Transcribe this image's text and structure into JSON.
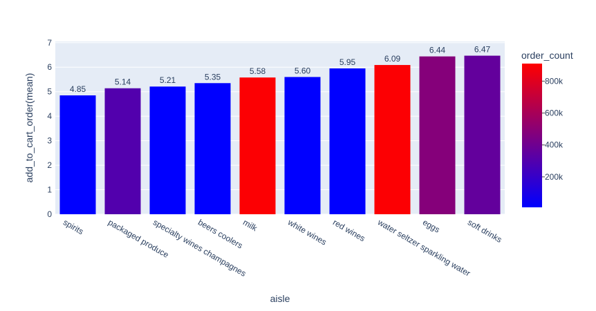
{
  "chart_data": {
    "type": "bar",
    "xlabel": "aisle",
    "ylabel": "add_to_cart_order(mean)",
    "ylim": [
      0,
      7.05
    ],
    "y_ticks": [
      "0",
      "1",
      "2",
      "3",
      "4",
      "5",
      "6",
      "7"
    ],
    "grid": true,
    "categories": [
      "spirits",
      "packaged produce",
      "specialty wines champagnes",
      "beers coolers",
      "milk",
      "white wines",
      "red wines",
      "water seltzer sparkling water",
      "eggs",
      "soft drinks"
    ],
    "values": [
      4.85,
      5.14,
      5.21,
      5.35,
      5.58,
      5.6,
      5.95,
      6.09,
      6.44,
      6.47
    ],
    "value_labels": [
      "4.85",
      "5.14",
      "5.21",
      "5.35",
      "5.58",
      "5.60",
      "5.95",
      "6.09",
      "6.44",
      "6.47"
    ],
    "color_values": [
      9000,
      300000,
      9000,
      9000,
      900000,
      9000,
      9000,
      900000,
      480000,
      360000
    ],
    "colorbar": {
      "title": "order_count",
      "range": [
        9000,
        910000
      ],
      "ticks": [
        200000,
        400000,
        600000,
        800000
      ],
      "tick_labels": [
        "200k",
        "400k",
        "600k",
        "800k"
      ],
      "colors": [
        "#0000ff",
        "#ff0000"
      ]
    },
    "plot_background": "#e5ecf6"
  }
}
